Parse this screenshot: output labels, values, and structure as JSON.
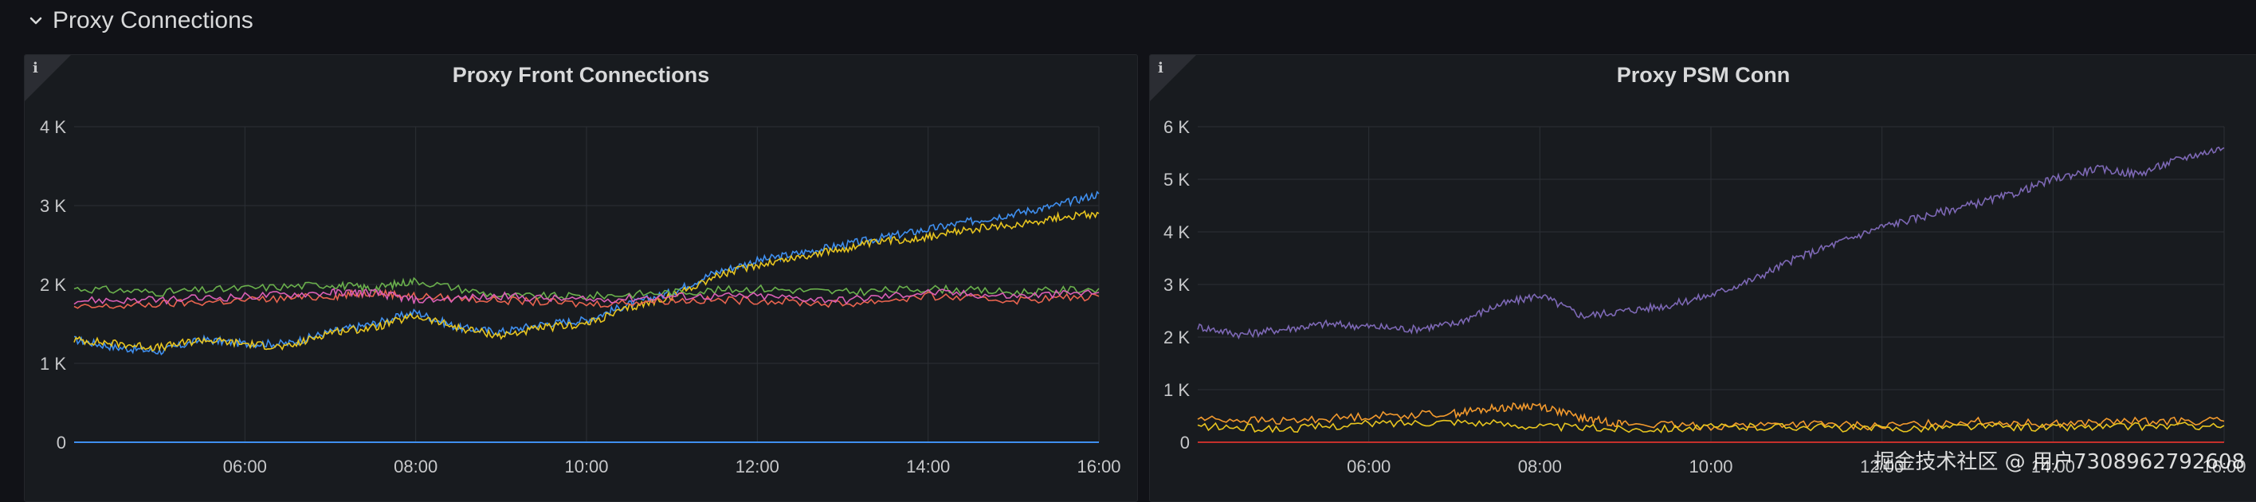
{
  "row": {
    "title": "Proxy Connections"
  },
  "colors": {
    "blue": "#3f8fef",
    "yellow": "#e8c51f",
    "green": "#6ab04c",
    "red": "#e8634f",
    "pink": "#d95fb6",
    "orange": "#f39a2d",
    "purple": "#7d68b5",
    "dark_red": "#c4302b"
  },
  "panels": {
    "left": {
      "title": "Proxy Front Connections",
      "info_icon": "info-icon"
    },
    "right": {
      "title": "Proxy PSM Conn",
      "info_icon": "info-icon"
    }
  },
  "watermark": "掘金技术社区 @ 用户7308962792608",
  "chart_data": [
    {
      "type": "line",
      "title": "Proxy Front Connections",
      "x_ticks": [
        "06:00",
        "08:00",
        "10:00",
        "12:00",
        "14:00",
        "16:00"
      ],
      "x_range_hours": [
        4.0,
        16.0
      ],
      "y_ticks": [
        "0",
        "1 K",
        "2 K",
        "3 K",
        "4 K"
      ],
      "ylim": [
        0,
        4000
      ],
      "grid": true,
      "series": [
        {
          "name": "series-blue",
          "color": "#3f8fef",
          "x": [
            4.0,
            4.5,
            5.0,
            5.5,
            6.0,
            6.5,
            7.0,
            7.5,
            8.0,
            8.5,
            9.0,
            9.5,
            10.0,
            10.5,
            11.0,
            11.5,
            12.0,
            12.5,
            13.0,
            13.5,
            14.0,
            14.5,
            15.0,
            15.5,
            16.0
          ],
          "values": [
            1300,
            1200,
            1150,
            1300,
            1250,
            1250,
            1400,
            1500,
            1650,
            1450,
            1400,
            1500,
            1550,
            1750,
            1900,
            2150,
            2300,
            2400,
            2500,
            2600,
            2700,
            2800,
            2900,
            3000,
            3150
          ]
        },
        {
          "name": "series-yellow",
          "color": "#e8c51f",
          "x": [
            4.0,
            4.5,
            5.0,
            5.5,
            6.0,
            6.5,
            7.0,
            7.5,
            8.0,
            8.5,
            9.0,
            9.5,
            10.0,
            10.5,
            11.0,
            11.5,
            12.0,
            12.5,
            13.0,
            13.5,
            14.0,
            14.5,
            15.0,
            15.5,
            16.0
          ],
          "values": [
            1300,
            1250,
            1200,
            1300,
            1250,
            1200,
            1400,
            1450,
            1600,
            1450,
            1350,
            1450,
            1500,
            1700,
            1850,
            2100,
            2250,
            2350,
            2450,
            2550,
            2600,
            2700,
            2750,
            2850,
            2900
          ]
        },
        {
          "name": "series-green",
          "color": "#6ab04c",
          "x": [
            4.0,
            5.0,
            6.0,
            7.0,
            7.5,
            8.0,
            9.0,
            10.0,
            11.0,
            12.0,
            13.0,
            14.0,
            15.0,
            16.0
          ],
          "values": [
            1950,
            1900,
            1950,
            2000,
            1950,
            2050,
            1850,
            1850,
            1900,
            1950,
            1900,
            1950,
            1900,
            1950
          ]
        },
        {
          "name": "series-red",
          "color": "#e8634f",
          "x": [
            4.0,
            5.0,
            6.0,
            7.0,
            7.5,
            8.0,
            9.0,
            10.0,
            11.0,
            12.0,
            13.0,
            14.0,
            15.0,
            16.0
          ],
          "values": [
            1700,
            1750,
            1800,
            1850,
            1900,
            1850,
            1800,
            1750,
            1800,
            1800,
            1750,
            1850,
            1800,
            1850
          ]
        },
        {
          "name": "series-pink",
          "color": "#d95fb6",
          "x": [
            4.0,
            5.0,
            6.0,
            7.0,
            7.5,
            8.0,
            9.0,
            10.0,
            11.0,
            12.0,
            13.0,
            14.0,
            15.0,
            16.0
          ],
          "values": [
            1800,
            1800,
            1850,
            1900,
            1900,
            1800,
            1850,
            1800,
            1850,
            1850,
            1800,
            1900,
            1850,
            1900
          ]
        },
        {
          "name": "series-baseline",
          "color": "#3f8fef",
          "x": [
            4.0,
            16.0
          ],
          "values": [
            0,
            0
          ]
        }
      ]
    },
    {
      "type": "line",
      "title": "Proxy PSM Conn",
      "x_ticks": [
        "06:00",
        "08:00",
        "10:00",
        "12:00",
        "14:00",
        "16:00"
      ],
      "x_range_hours": [
        4.0,
        16.0
      ],
      "y_ticks": [
        "0",
        "1 K",
        "2 K",
        "3 K",
        "4 K",
        "5 K",
        "6 K"
      ],
      "ylim": [
        0,
        6000
      ],
      "grid": true,
      "series": [
        {
          "name": "series-purple",
          "color": "#7d68b5",
          "x": [
            4.0,
            4.5,
            5.0,
            5.5,
            6.0,
            6.5,
            7.0,
            7.5,
            8.0,
            8.5,
            9.0,
            9.5,
            10.0,
            10.5,
            11.0,
            11.5,
            12.0,
            12.5,
            13.0,
            13.5,
            14.0,
            14.5,
            15.0,
            15.5,
            16.0
          ],
          "values": [
            2200,
            2050,
            2150,
            2250,
            2200,
            2150,
            2250,
            2600,
            2800,
            2400,
            2500,
            2600,
            2800,
            3100,
            3500,
            3800,
            4100,
            4300,
            4500,
            4700,
            5000,
            5200,
            5100,
            5400,
            5600
          ]
        },
        {
          "name": "series-orange",
          "color": "#f39a2d",
          "x": [
            4.0,
            5.0,
            6.0,
            7.0,
            7.5,
            8.0,
            8.5,
            9.0,
            10.0,
            11.0,
            12.0,
            13.0,
            14.0,
            15.0,
            16.0
          ],
          "values": [
            450,
            400,
            500,
            550,
            650,
            700,
            450,
            350,
            300,
            350,
            300,
            400,
            350,
            400,
            400
          ]
        },
        {
          "name": "series-yellow2",
          "color": "#e8c51f",
          "x": [
            4.0,
            5.0,
            6.0,
            7.0,
            8.0,
            9.0,
            10.0,
            11.0,
            12.0,
            13.0,
            14.0,
            15.0,
            16.0
          ],
          "values": [
            300,
            250,
            350,
            400,
            300,
            250,
            280,
            300,
            250,
            300,
            280,
            300,
            320
          ]
        },
        {
          "name": "series-darkred",
          "color": "#c4302b",
          "x": [
            4.0,
            16.0
          ],
          "values": [
            0,
            0
          ]
        }
      ]
    }
  ]
}
